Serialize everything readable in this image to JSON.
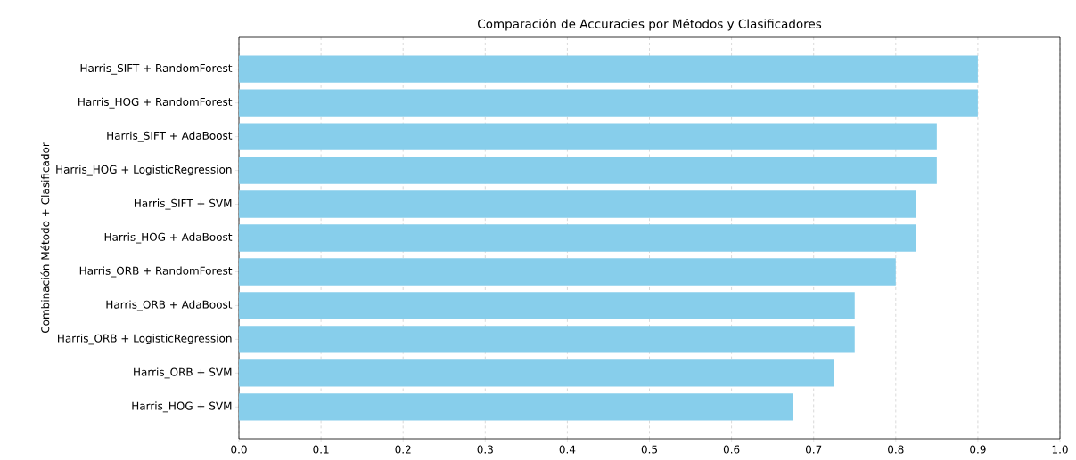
{
  "chart_data": {
    "type": "bar",
    "orientation": "horizontal",
    "title": "Comparación de Accuracies por Métodos y Clasificadores",
    "ylabel": "Combinación Método + Clasificador",
    "categories": [
      "Harris_SIFT + RandomForest",
      "Harris_HOG + RandomForest",
      "Harris_SIFT + AdaBoost",
      "Harris_HOG + LogisticRegression",
      "Harris_SIFT + SVM",
      "Harris_HOG + AdaBoost",
      "Harris_ORB + RandomForest",
      "Harris_ORB + AdaBoost",
      "Harris_ORB + LogisticRegression",
      "Harris_ORB + SVM",
      "Harris_HOG + SVM"
    ],
    "values": [
      0.9,
      0.9,
      0.85,
      0.85,
      0.825,
      0.825,
      0.8,
      0.75,
      0.75,
      0.725,
      0.675
    ],
    "color": "#87ceeb",
    "xlim": [
      0,
      1
    ],
    "xticks": [
      {
        "value": 0,
        "label": "0.0"
      },
      0.1,
      0.2,
      0.3,
      0.4,
      0.5,
      0.6,
      0.7,
      0.8,
      0.9,
      {
        "value": 1,
        "label": "1.0"
      }
    ],
    "grid": "x"
  }
}
